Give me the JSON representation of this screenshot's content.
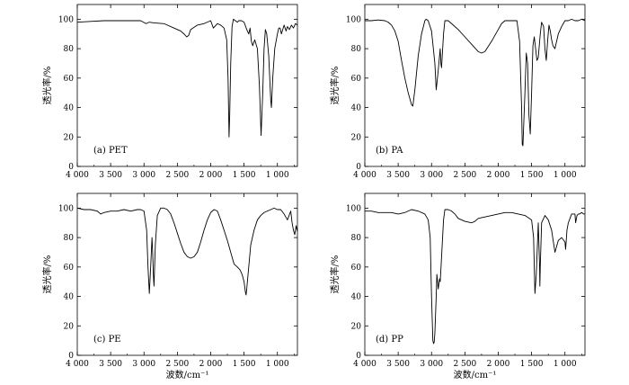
{
  "chart_data": [
    {
      "type": "line",
      "panel_label": "(a)  PET",
      "ylabel": "透光率/%",
      "xlabel": "",
      "xlim": [
        4000,
        700
      ],
      "ylim": [
        0,
        110
      ],
      "xticks": [
        4000,
        3500,
        3000,
        2500,
        2000,
        1500,
        1000
      ],
      "xtick_labels": [
        "4 000",
        "3 500",
        "3 000",
        "2 500",
        "2 000",
        "1 500",
        "1 000"
      ],
      "yticks": [
        0,
        20,
        40,
        60,
        80,
        100
      ],
      "ytick_labels": [
        "0",
        "20",
        "40",
        "60",
        "80",
        "100"
      ],
      "x": [
        4000,
        3800,
        3600,
        3400,
        3200,
        3050,
        2970,
        2920,
        2850,
        2700,
        2550,
        2450,
        2400,
        2360,
        2330,
        2300,
        2200,
        2100,
        2000,
        1960,
        1900,
        1850,
        1800,
        1760,
        1740,
        1725,
        1715,
        1700,
        1680,
        1660,
        1600,
        1580,
        1540,
        1500,
        1460,
        1430,
        1410,
        1390,
        1370,
        1340,
        1300,
        1270,
        1245,
        1220,
        1200,
        1180,
        1160,
        1130,
        1100,
        1090,
        1070,
        1040,
        1020,
        1000,
        980,
        960,
        940,
        900,
        870,
        850,
        820,
        790,
        760,
        730,
        700
      ],
      "y": [
        98,
        98.5,
        99,
        99,
        99,
        99,
        97,
        98,
        97.5,
        97,
        94,
        92,
        90,
        88,
        89,
        93,
        96,
        97,
        99,
        94,
        97,
        96,
        94,
        86,
        60,
        20,
        35,
        70,
        95,
        100,
        98,
        99,
        99,
        98,
        93,
        90,
        94,
        85,
        82,
        86,
        80,
        55,
        21,
        50,
        80,
        93,
        90,
        75,
        45,
        40,
        60,
        80,
        85,
        90,
        94,
        94,
        90,
        96,
        92,
        95,
        93,
        96,
        94,
        97,
        96
      ]
    },
    {
      "type": "line",
      "panel_label": "(b) PA",
      "ylabel": "透光率/%",
      "xlabel": "",
      "xlim": [
        4000,
        700
      ],
      "ylim": [
        0,
        110
      ],
      "xticks": [
        4000,
        3500,
        3000,
        2500,
        2000,
        1500,
        1000
      ],
      "xtick_labels": [
        "4 000",
        "3 500",
        "3 000",
        "2 500",
        "2 000",
        "1 500",
        "1 000"
      ],
      "yticks": [
        0,
        20,
        40,
        60,
        80,
        100
      ],
      "ytick_labels": [
        "0",
        "20",
        "40",
        "60",
        "80",
        "100"
      ],
      "x": [
        4000,
        3900,
        3800,
        3700,
        3650,
        3600,
        3550,
        3500,
        3450,
        3400,
        3350,
        3300,
        3280,
        3250,
        3200,
        3150,
        3100,
        3080,
        3050,
        3000,
        2950,
        2930,
        2900,
        2870,
        2860,
        2850,
        2820,
        2800,
        2750,
        2700,
        2600,
        2500,
        2400,
        2300,
        2250,
        2200,
        2100,
        2000,
        1950,
        1900,
        1800,
        1720,
        1680,
        1650,
        1640,
        1630,
        1600,
        1580,
        1560,
        1540,
        1520,
        1500,
        1480,
        1460,
        1440,
        1420,
        1400,
        1370,
        1350,
        1320,
        1300,
        1280,
        1260,
        1240,
        1220,
        1200,
        1180,
        1150,
        1100,
        1050,
        1000,
        950,
        900,
        850,
        800,
        750,
        700
      ],
      "y": [
        99,
        99,
        99.5,
        99,
        98,
        96,
        92,
        85,
        72,
        60,
        50,
        42,
        41,
        52,
        75,
        90,
        99,
        100,
        99,
        92,
        70,
        52,
        65,
        80,
        70,
        67,
        90,
        99,
        99,
        97,
        93,
        88,
        83,
        78,
        77,
        78,
        85,
        93,
        97,
        99,
        99,
        99,
        85,
        40,
        15,
        14,
        50,
        77,
        70,
        35,
        22,
        50,
        82,
        88,
        80,
        72,
        74,
        90,
        98,
        95,
        80,
        72,
        85,
        96,
        92,
        86,
        82,
        80,
        90,
        95,
        99,
        99,
        100,
        99,
        99,
        100,
        99
      ]
    },
    {
      "type": "line",
      "panel_label": "(c) PE",
      "ylabel": "透光率/%",
      "xlabel": "波数/cm⁻¹",
      "xlim": [
        4000,
        700
      ],
      "ylim": [
        0,
        110
      ],
      "xticks": [
        4000,
        3500,
        3000,
        2500,
        2000,
        1500,
        1000
      ],
      "xtick_labels": [
        "4 000",
        "3 500",
        "3 000",
        "2 500",
        "2 000",
        "1 500",
        "1 000"
      ],
      "yticks": [
        0,
        20,
        40,
        60,
        80,
        100
      ],
      "ytick_labels": [
        "0",
        "20",
        "40",
        "60",
        "80",
        "100"
      ],
      "x": [
        4000,
        3900,
        3800,
        3700,
        3650,
        3600,
        3500,
        3400,
        3300,
        3200,
        3100,
        3050,
        3000,
        2960,
        2940,
        2920,
        2900,
        2880,
        2870,
        2860,
        2850,
        2830,
        2800,
        2750,
        2700,
        2650,
        2600,
        2550,
        2500,
        2450,
        2400,
        2350,
        2300,
        2250,
        2200,
        2150,
        2100,
        2050,
        2000,
        1950,
        1900,
        1850,
        1800,
        1750,
        1700,
        1650,
        1600,
        1560,
        1530,
        1500,
        1480,
        1470,
        1460,
        1440,
        1420,
        1400,
        1350,
        1300,
        1250,
        1200,
        1150,
        1100,
        1050,
        1000,
        950,
        900,
        850,
        800,
        780,
        760,
        740,
        720,
        700
      ],
      "y": [
        100,
        99,
        99,
        98,
        96,
        97,
        98,
        98,
        99,
        98,
        99,
        99,
        98,
        85,
        60,
        42,
        60,
        80,
        70,
        55,
        47,
        75,
        95,
        100,
        100,
        99,
        96,
        90,
        83,
        76,
        70,
        67,
        66,
        67,
        70,
        77,
        85,
        92,
        97,
        99,
        98,
        92,
        85,
        78,
        70,
        62,
        60,
        58,
        55,
        50,
        43,
        41,
        45,
        55,
        65,
        75,
        85,
        92,
        95,
        97,
        98,
        99,
        100,
        99,
        99,
        96,
        92,
        98,
        90,
        85,
        82,
        88,
        84
      ]
    },
    {
      "type": "line",
      "panel_label": "(d) PP",
      "ylabel": "透光率/%",
      "xlabel": "波数/cm⁻¹",
      "xlim": [
        4000,
        700
      ],
      "ylim": [
        0,
        110
      ],
      "xticks": [
        4000,
        3500,
        3000,
        2500,
        2000,
        1500,
        1000
      ],
      "xtick_labels": [
        "4 000",
        "3 500",
        "3 000",
        "2 500",
        "2 000",
        "1 500",
        "1 000"
      ],
      "yticks": [
        0,
        20,
        40,
        60,
        80,
        100
      ],
      "ytick_labels": [
        "0",
        "20",
        "40",
        "60",
        "80",
        "100"
      ],
      "x": [
        4000,
        3900,
        3800,
        3700,
        3600,
        3500,
        3400,
        3300,
        3200,
        3100,
        3050,
        3020,
        3000,
        2980,
        2970,
        2960,
        2950,
        2930,
        2920,
        2900,
        2880,
        2870,
        2860,
        2840,
        2820,
        2800,
        2750,
        2700,
        2650,
        2600,
        2500,
        2400,
        2350,
        2300,
        2200,
        2100,
        2000,
        1900,
        1800,
        1700,
        1600,
        1500,
        1470,
        1460,
        1450,
        1430,
        1400,
        1380,
        1376,
        1370,
        1350,
        1300,
        1250,
        1200,
        1170,
        1150,
        1100,
        1050,
        1000,
        990,
        970,
        950,
        900,
        850,
        840,
        820,
        800,
        780,
        750,
        720,
        700
      ],
      "y": [
        98,
        98,
        97,
        97,
        97,
        96,
        97,
        99,
        98,
        96,
        92,
        80,
        40,
        10,
        8,
        9,
        15,
        40,
        55,
        45,
        52,
        50,
        58,
        75,
        92,
        99,
        99,
        98,
        96,
        93,
        91,
        90,
        91,
        93,
        94,
        95,
        96,
        97,
        97,
        96,
        95,
        92,
        80,
        60,
        42,
        55,
        90,
        60,
        47,
        60,
        90,
        95,
        92,
        85,
        76,
        70,
        78,
        80,
        77,
        72,
        85,
        90,
        96,
        96,
        90,
        95,
        96,
        96,
        97,
        96,
        96
      ]
    }
  ]
}
